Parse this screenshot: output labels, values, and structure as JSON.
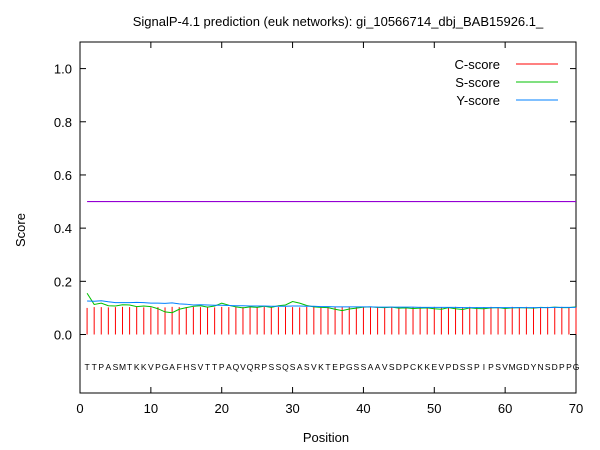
{
  "chart_data": {
    "type": "line",
    "title": "SignalP-4.1 prediction (euk networks): gi_10566714_dbj_BAB15926.1_",
    "xlabel": "Position",
    "ylabel": "Score",
    "xlim": [
      0,
      70
    ],
    "ylim": [
      -0.22,
      1.1
    ],
    "x_ticks": [
      "0",
      "10",
      "20",
      "30",
      "40",
      "50",
      "60",
      "70"
    ],
    "y_ticks": [
      "0.0",
      "0.2",
      "0.4",
      "0.6",
      "0.8",
      "1.0"
    ],
    "legend_position": "top-right",
    "threshold": 0.5,
    "sequence": "TTPASMTKKVPGAFHSVTTPAQVQRPSSQSASVKTEPGSSAAVSDPCKKEVPDSSPIPSVMGDYNSDPPG",
    "series": [
      {
        "name": "C-score",
        "color": "#ff0000",
        "style": "bars",
        "values": [
          0.1,
          0.103,
          0.103,
          0.102,
          0.103,
          0.104,
          0.103,
          0.104,
          0.102,
          0.102,
          0.103,
          0.102,
          0.104,
          0.103,
          0.103,
          0.104,
          0.103,
          0.103,
          0.102,
          0.104,
          0.103,
          0.104,
          0.103,
          0.104,
          0.103,
          0.104,
          0.103,
          0.103,
          0.104,
          0.103,
          0.102,
          0.104,
          0.103,
          0.104,
          0.103,
          0.103,
          0.104,
          0.103,
          0.103,
          0.104,
          0.103,
          0.104,
          0.103,
          0.102,
          0.104,
          0.103,
          0.103,
          0.104,
          0.103,
          0.104,
          0.103,
          0.103,
          0.104,
          0.103,
          0.104,
          0.103,
          0.103,
          0.104,
          0.103,
          0.102,
          0.104,
          0.103,
          0.104,
          0.103,
          0.103,
          0.104,
          0.103,
          0.104,
          0.103,
          0.102
        ]
      },
      {
        "name": "S-score",
        "color": "#00c000",
        "style": "line",
        "values": [
          0.155,
          0.113,
          0.118,
          0.108,
          0.107,
          0.112,
          0.111,
          0.105,
          0.107,
          0.105,
          0.097,
          0.085,
          0.082,
          0.095,
          0.101,
          0.106,
          0.108,
          0.103,
          0.107,
          0.118,
          0.11,
          0.104,
          0.1,
          0.104,
          0.102,
          0.106,
          0.102,
          0.108,
          0.111,
          0.124,
          0.118,
          0.109,
          0.104,
          0.102,
          0.101,
          0.095,
          0.09,
          0.096,
          0.099,
          0.103,
          0.104,
          0.102,
          0.101,
          0.103,
          0.099,
          0.1,
          0.098,
          0.099,
          0.1,
          0.097,
          0.095,
          0.101,
          0.097,
          0.094,
          0.1,
          0.098,
          0.097,
          0.1,
          0.101,
          0.098,
          0.1,
          0.101,
          0.1,
          0.099,
          0.102,
          0.101,
          0.103,
          0.101,
          0.101,
          0.104
        ]
      },
      {
        "name": "Y-score",
        "color": "#0080ff",
        "style": "line",
        "values": [
          0.126,
          0.125,
          0.127,
          0.123,
          0.12,
          0.12,
          0.12,
          0.121,
          0.12,
          0.118,
          0.118,
          0.117,
          0.119,
          0.115,
          0.114,
          0.111,
          0.112,
          0.111,
          0.11,
          0.11,
          0.109,
          0.108,
          0.108,
          0.107,
          0.107,
          0.107,
          0.106,
          0.106,
          0.106,
          0.107,
          0.107,
          0.106,
          0.106,
          0.105,
          0.105,
          0.104,
          0.104,
          0.104,
          0.104,
          0.104,
          0.104,
          0.103,
          0.103,
          0.103,
          0.103,
          0.103,
          0.103,
          0.102,
          0.102,
          0.102,
          0.102,
          0.102,
          0.102,
          0.101,
          0.101,
          0.101,
          0.101,
          0.101,
          0.101,
          0.101,
          0.101,
          0.101,
          0.101,
          0.101,
          0.101,
          0.101,
          0.102,
          0.102,
          0.102,
          0.102
        ]
      }
    ]
  }
}
